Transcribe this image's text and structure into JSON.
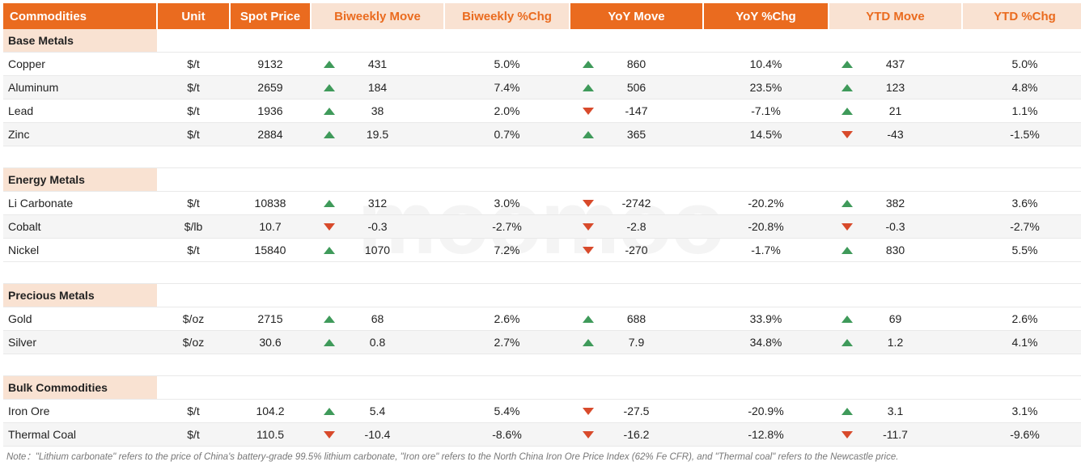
{
  "watermark_text": "moomoo",
  "colors": {
    "header_bg": "#ea6b1f",
    "header_pale_bg": "#f9e2d2",
    "header_pale_fg": "#ea6b1f",
    "row_stripe": "#f5f5f5",
    "border": "#e9e9e9",
    "up": "#3f9a5a",
    "down": "#d84a2b",
    "text": "#222222",
    "footnote": "#777777"
  },
  "columns": [
    {
      "key": "name",
      "label": "Commodities",
      "pale": false,
      "class": "commodities"
    },
    {
      "key": "unit",
      "label": "Unit",
      "pale": false
    },
    {
      "key": "spot",
      "label": "Spot Price",
      "pale": false
    },
    {
      "key": "biweekly_move",
      "label": "Biweekly Move",
      "pale": true
    },
    {
      "key": "biweekly_pct",
      "label": "Biweekly %Chg",
      "pale": true
    },
    {
      "key": "yoy_move",
      "label": "YoY Move",
      "pale": false
    },
    {
      "key": "yoy_pct",
      "label": "YoY  %Chg",
      "pale": false
    },
    {
      "key": "ytd_move",
      "label": "YTD Move",
      "pale": true
    },
    {
      "key": "ytd_pct",
      "label": "YTD %Chg",
      "pale": true
    }
  ],
  "groups": [
    {
      "label": "Base Metals",
      "rows": [
        {
          "name": "Copper",
          "unit": "$/t",
          "spot": "9132",
          "biweekly_move": "431",
          "biweekly_dir": "up",
          "biweekly_pct": "5.0%",
          "yoy_move": "860",
          "yoy_dir": "up",
          "yoy_pct": "10.4%",
          "ytd_move": "437",
          "ytd_dir": "up",
          "ytd_pct": "5.0%"
        },
        {
          "name": "Aluminum",
          "unit": "$/t",
          "spot": "2659",
          "biweekly_move": "184",
          "biweekly_dir": "up",
          "biweekly_pct": "7.4%",
          "yoy_move": "506",
          "yoy_dir": "up",
          "yoy_pct": "23.5%",
          "ytd_move": "123",
          "ytd_dir": "up",
          "ytd_pct": "4.8%"
        },
        {
          "name": "Lead",
          "unit": "$/t",
          "spot": "1936",
          "biweekly_move": "38",
          "biweekly_dir": "up",
          "biweekly_pct": "2.0%",
          "yoy_move": "-147",
          "yoy_dir": "down",
          "yoy_pct": "-7.1%",
          "ytd_move": "21",
          "ytd_dir": "up",
          "ytd_pct": "1.1%"
        },
        {
          "name": "Zinc",
          "unit": "$/t",
          "spot": "2884",
          "biweekly_move": "19.5",
          "biweekly_dir": "up",
          "biweekly_pct": "0.7%",
          "yoy_move": "365",
          "yoy_dir": "up",
          "yoy_pct": "14.5%",
          "ytd_move": "-43",
          "ytd_dir": "down",
          "ytd_pct": "-1.5%"
        }
      ]
    },
    {
      "label": "Energy Metals",
      "rows": [
        {
          "name": "Li Carbonate",
          "unit": "$/t",
          "spot": "10838",
          "biweekly_move": "312",
          "biweekly_dir": "up",
          "biweekly_pct": "3.0%",
          "yoy_move": "-2742",
          "yoy_dir": "down",
          "yoy_pct": "-20.2%",
          "ytd_move": "382",
          "ytd_dir": "up",
          "ytd_pct": "3.6%"
        },
        {
          "name": "Cobalt",
          "unit": "$/lb",
          "spot": "10.7",
          "biweekly_move": "-0.3",
          "biweekly_dir": "down",
          "biweekly_pct": "-2.7%",
          "yoy_move": "-2.8",
          "yoy_dir": "down",
          "yoy_pct": "-20.8%",
          "ytd_move": "-0.3",
          "ytd_dir": "down",
          "ytd_pct": "-2.7%"
        },
        {
          "name": "Nickel",
          "unit": "$/t",
          "spot": "15840",
          "biweekly_move": "1070",
          "biweekly_dir": "up",
          "biweekly_pct": "7.2%",
          "yoy_move": "-270",
          "yoy_dir": "down",
          "yoy_pct": "-1.7%",
          "ytd_move": "830",
          "ytd_dir": "up",
          "ytd_pct": "5.5%"
        }
      ]
    },
    {
      "label": "Precious Metals",
      "rows": [
        {
          "name": "Gold",
          "unit": "$/oz",
          "spot": "2715",
          "biweekly_move": "68",
          "biweekly_dir": "up",
          "biweekly_pct": "2.6%",
          "yoy_move": "688",
          "yoy_dir": "up",
          "yoy_pct": "33.9%",
          "ytd_move": "69",
          "ytd_dir": "up",
          "ytd_pct": "2.6%"
        },
        {
          "name": "Silver",
          "unit": "$/oz",
          "spot": "30.6",
          "biweekly_move": "0.8",
          "biweekly_dir": "up",
          "biweekly_pct": "2.7%",
          "yoy_move": "7.9",
          "yoy_dir": "up",
          "yoy_pct": "34.8%",
          "ytd_move": "1.2",
          "ytd_dir": "up",
          "ytd_pct": "4.1%"
        }
      ]
    },
    {
      "label": "Bulk Commodities",
      "rows": [
        {
          "name": "Iron Ore",
          "unit": "$/t",
          "spot": "104.2",
          "biweekly_move": "5.4",
          "biweekly_dir": "up",
          "biweekly_pct": "5.4%",
          "yoy_move": "-27.5",
          "yoy_dir": "down",
          "yoy_pct": "-20.9%",
          "ytd_move": "3.1",
          "ytd_dir": "up",
          "ytd_pct": "3.1%"
        },
        {
          "name": "Thermal Coal",
          "unit": "$/t",
          "spot": "110.5",
          "biweekly_move": "-10.4",
          "biweekly_dir": "down",
          "biweekly_pct": "-8.6%",
          "yoy_move": "-16.2",
          "yoy_dir": "down",
          "yoy_pct": "-12.8%",
          "ytd_move": "-11.7",
          "ytd_dir": "down",
          "ytd_pct": "-9.6%"
        }
      ]
    }
  ],
  "footnote": "Note：\"Lithium carbonate\" refers to the price of China's battery-grade 99.5% lithium carbonate, \"Iron ore\" refers to the North China Iron Ore Price Index (62% Fe CFR), and \"Thermal coal\" refers to the Newcastle price."
}
